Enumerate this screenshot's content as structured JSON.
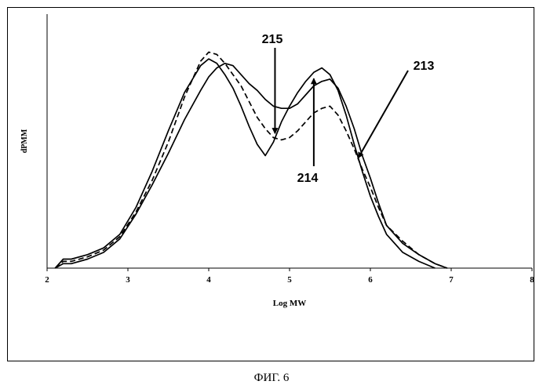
{
  "figure_caption": "ФИГ. 6",
  "chart_data": {
    "type": "line",
    "xlabel": "Log MW",
    "ylabel": "dPMM",
    "xlim": [
      2,
      8
    ],
    "ylim": [
      0,
      1
    ],
    "x_ticks": [
      "2",
      "3",
      "4",
      "5",
      "6",
      "7",
      "8"
    ],
    "grid": false,
    "series": [
      {
        "name": "213",
        "style": "solid",
        "x": [
          2.1,
          2.2,
          2.3,
          2.5,
          2.7,
          2.9,
          3.1,
          3.3,
          3.5,
          3.7,
          3.9,
          4.0,
          4.1,
          4.2,
          4.3,
          4.4,
          4.5,
          4.6,
          4.7,
          4.8,
          4.9,
          5.0,
          5.1,
          5.2,
          5.3,
          5.4,
          5.5,
          5.6,
          5.7,
          5.8,
          5.9,
          6.0,
          6.1,
          6.2,
          6.4,
          6.6,
          6.8,
          6.95
        ],
        "y": [
          0.0,
          0.02,
          0.02,
          0.04,
          0.07,
          0.13,
          0.24,
          0.37,
          0.51,
          0.66,
          0.79,
          0.85,
          0.89,
          0.91,
          0.9,
          0.86,
          0.82,
          0.79,
          0.75,
          0.72,
          0.71,
          0.71,
          0.73,
          0.77,
          0.81,
          0.83,
          0.84,
          0.8,
          0.72,
          0.62,
          0.5,
          0.4,
          0.29,
          0.19,
          0.11,
          0.06,
          0.02,
          0.0
        ]
      },
      {
        "name": "214",
        "style": "dashed",
        "x": [
          2.1,
          2.2,
          2.3,
          2.5,
          2.7,
          2.9,
          3.1,
          3.3,
          3.5,
          3.7,
          3.9,
          4.0,
          4.1,
          4.2,
          4.3,
          4.4,
          4.5,
          4.6,
          4.7,
          4.8,
          4.9,
          5.0,
          5.1,
          5.2,
          5.3,
          5.4,
          5.5,
          5.6,
          5.7,
          5.8,
          5.9,
          6.0,
          6.1,
          6.2,
          6.4,
          6.6,
          6.8,
          6.95
        ],
        "y": [
          0.0,
          0.03,
          0.03,
          0.05,
          0.08,
          0.14,
          0.25,
          0.39,
          0.56,
          0.76,
          0.92,
          0.96,
          0.95,
          0.91,
          0.86,
          0.81,
          0.74,
          0.67,
          0.62,
          0.58,
          0.57,
          0.58,
          0.61,
          0.65,
          0.69,
          0.71,
          0.72,
          0.68,
          0.61,
          0.53,
          0.44,
          0.36,
          0.27,
          0.19,
          0.12,
          0.06,
          0.02,
          0.0
        ]
      },
      {
        "name": "215",
        "style": "solid",
        "x": [
          2.1,
          2.2,
          2.3,
          2.5,
          2.7,
          2.9,
          3.1,
          3.3,
          3.5,
          3.7,
          3.9,
          4.0,
          4.1,
          4.2,
          4.3,
          4.4,
          4.5,
          4.6,
          4.7,
          4.8,
          4.9,
          5.0,
          5.1,
          5.2,
          5.3,
          5.4,
          5.5,
          5.6,
          5.7,
          5.8,
          5.9,
          6.0,
          6.1,
          6.2,
          6.4,
          6.6,
          6.8
        ],
        "y": [
          0.0,
          0.04,
          0.04,
          0.06,
          0.09,
          0.15,
          0.27,
          0.43,
          0.61,
          0.78,
          0.9,
          0.93,
          0.91,
          0.86,
          0.8,
          0.72,
          0.63,
          0.55,
          0.5,
          0.56,
          0.65,
          0.72,
          0.78,
          0.83,
          0.87,
          0.89,
          0.86,
          0.79,
          0.68,
          0.55,
          0.43,
          0.32,
          0.23,
          0.15,
          0.07,
          0.03,
          0.0
        ]
      }
    ],
    "annotations": [
      {
        "text": "215",
        "target_series": "214",
        "arrow": "down"
      },
      {
        "text": "214",
        "target_series": "215",
        "arrow": "up"
      },
      {
        "text": "213",
        "target_series": "215",
        "arrow": "down-left"
      }
    ]
  }
}
